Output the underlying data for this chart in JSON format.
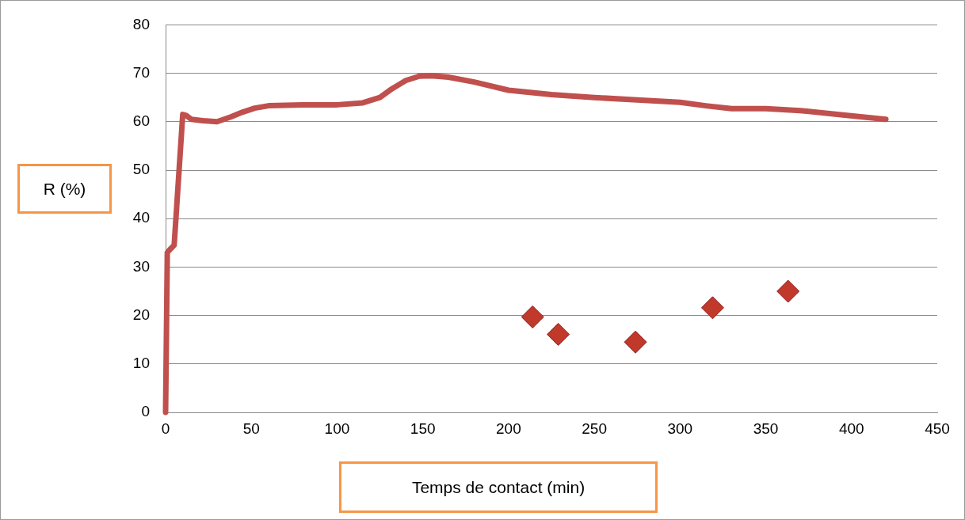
{
  "chart_data": {
    "type": "line",
    "xlabel": "Temps de contact  (min)",
    "ylabel": "R (%)",
    "xlim": [
      0,
      450
    ],
    "xticks": [
      0,
      50,
      100,
      150,
      200,
      250,
      300,
      350,
      400,
      450
    ],
    "ylim": [
      0,
      80
    ],
    "yticks": [
      0,
      10,
      20,
      30,
      40,
      50,
      60,
      70,
      80
    ],
    "grid": "y",
    "series": [
      {
        "type": "line",
        "color": "#c0504d",
        "marker": "none",
        "x": [
          0,
          1,
          3,
          5,
          10,
          12,
          15,
          22,
          30,
          38,
          45,
          52,
          60,
          80,
          100,
          115,
          125,
          132,
          140,
          148,
          155,
          165,
          180,
          200,
          225,
          250,
          275,
          300,
          315,
          330,
          350,
          370,
          395,
          420
        ],
        "values": [
          0,
          33,
          33.8,
          34.5,
          61.5,
          61.3,
          60.5,
          60.2,
          60,
          61,
          62,
          62.8,
          63.3,
          63.5,
          63.5,
          63.9,
          65,
          66.8,
          68.5,
          69.4,
          69.5,
          69.2,
          68.2,
          66.5,
          65.6,
          65,
          64.5,
          64,
          63.3,
          62.7,
          62.7,
          62.3,
          61.4,
          60.5
        ]
      },
      {
        "type": "scatter",
        "color": "#c0392b",
        "marker": "diamond",
        "x": [
          214,
          229,
          274,
          319,
          363
        ],
        "values": [
          19.7,
          16.1,
          14.5,
          21.6,
          25
        ]
      }
    ]
  }
}
